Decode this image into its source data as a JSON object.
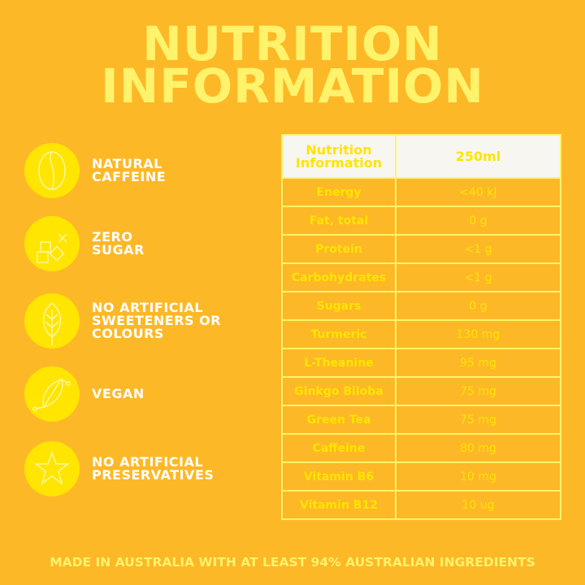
{
  "title": {
    "line1": "NUTRITION",
    "line2": "INFORMATION"
  },
  "features": [
    {
      "icon": "coffee-bean-icon",
      "label": "NATURAL\nCAFFEINE"
    },
    {
      "icon": "sugar-cubes-icon",
      "label": "ZERO\nSUGAR"
    },
    {
      "icon": "leaf-icon",
      "label": "NO ARTIFICIAL\nSWEETENERS OR\nCOLOURS"
    },
    {
      "icon": "vegan-leaf-icon",
      "label": "VEGAN"
    },
    {
      "icon": "star-icon",
      "label": "NO ARTIFICIAL\nPRESERVATIVES"
    }
  ],
  "table": {
    "header": [
      "Nutrition Information",
      "250ml"
    ],
    "rows": [
      [
        "Energy",
        "<40 kJ"
      ],
      [
        "Fat, total",
        "0 g"
      ],
      [
        "Protein",
        "<1 g"
      ],
      [
        "Carbohydrates",
        "<1 g"
      ],
      [
        "Sugars",
        "0 g"
      ],
      [
        "Turmeric",
        "130 mg"
      ],
      [
        "L-Theanine",
        "95 mg"
      ],
      [
        "Ginkgo Biloba",
        "75 mg"
      ],
      [
        "Green Tea",
        "75 mg"
      ],
      [
        "Caffeine",
        "80 mg"
      ],
      [
        "Vitamin B6",
        "10 mg"
      ],
      [
        "Vitamin B12",
        "10 ug"
      ]
    ]
  },
  "footer": "MADE IN AUSTRALIA WITH AT LEAST 94% AUSTRALIAN INGREDIENTS",
  "colors": {
    "background": "#fdb827",
    "circle": "#ffe500",
    "title": "#fff36b"
  }
}
